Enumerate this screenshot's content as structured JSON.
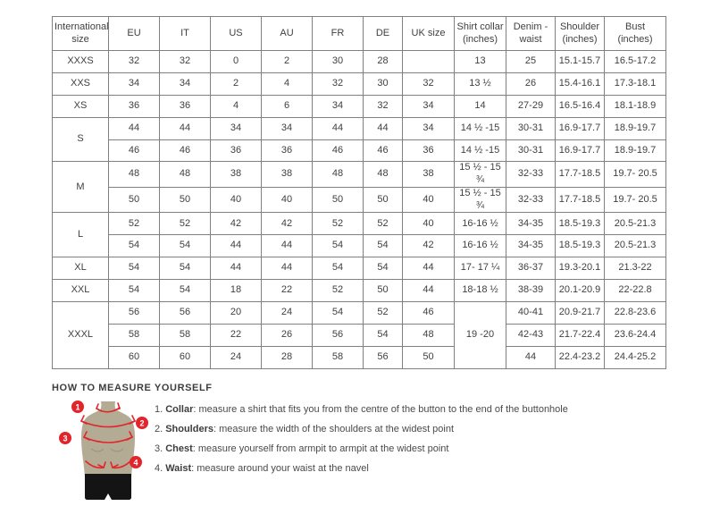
{
  "colors": {
    "accent_red": "#e0262c",
    "torso_tan": "#b3ab93",
    "table_border": "#808080",
    "text": "#404040"
  },
  "table": {
    "headers": [
      "International size",
      "EU",
      "IT",
      "US",
      "AU",
      "FR",
      "DE",
      "UK size",
      "Shirt collar (inches)",
      "Denim - waist",
      "Shoulder (inches)",
      "Bust (inches)"
    ],
    "rows": [
      [
        "XXXS",
        "32",
        "32",
        "0",
        "2",
        "30",
        "28",
        "",
        "13",
        "25",
        "15.1-15.7",
        "16.5-17.2"
      ],
      [
        "XXS",
        "34",
        "34",
        "2",
        "4",
        "32",
        "30",
        "32",
        "13 ½",
        "26",
        "15.4-16.1",
        "17.3-18.1"
      ],
      [
        "XS",
        "36",
        "36",
        "4",
        "6",
        "34",
        "32",
        "34",
        "14",
        "27-29",
        "16.5-16.4",
        "18.1-18.9"
      ],
      [
        {
          "v": "S",
          "rs": 2
        },
        "44",
        "44",
        "34",
        "34",
        "44",
        "44",
        "34",
        "14 ½ -15",
        "30-31",
        "16.9-17.7",
        "18.9-19.7"
      ],
      [
        "46",
        "46",
        "36",
        "36",
        "46",
        "46",
        "36",
        "14 ½ -15",
        "30-31",
        "16.9-17.7",
        "18.9-19.7"
      ],
      [
        {
          "v": "M",
          "rs": 2
        },
        "48",
        "48",
        "38",
        "38",
        "48",
        "48",
        "38",
        "15 ½ - 15 ¾",
        "32-33",
        "17.7-18.5",
        "19.7- 20.5"
      ],
      [
        "50",
        "50",
        "40",
        "40",
        "50",
        "50",
        "40",
        "15 ½ - 15 ¾",
        "32-33",
        "17.7-18.5",
        "19.7- 20.5"
      ],
      [
        {
          "v": "L",
          "rs": 2
        },
        "52",
        "52",
        "42",
        "42",
        "52",
        "52",
        "40",
        "16-16 ½",
        "34-35",
        "18.5-19.3",
        "20.5-21.3"
      ],
      [
        "54",
        "54",
        "44",
        "44",
        "54",
        "54",
        "42",
        "16-16 ½",
        "34-35",
        "18.5-19.3",
        "20.5-21.3"
      ],
      [
        "XL",
        "54",
        "54",
        "44",
        "44",
        "54",
        "54",
        "44",
        "17- 17 ¼",
        "36-37",
        "19.3-20.1",
        "21.3-22"
      ],
      [
        "XXL",
        "54",
        "54",
        "18",
        "22",
        "52",
        "50",
        "44",
        "18-18 ½",
        "38-39",
        "20.1-20.9",
        "22-22.8"
      ],
      [
        {
          "v": "XXXL",
          "rs": 3
        },
        "56",
        "56",
        "20",
        "24",
        "54",
        "52",
        "46",
        {
          "v": "19 -20",
          "rs": 3
        },
        "40-41",
        "20.9-21.7",
        "22.8-23.6"
      ],
      [
        "58",
        "58",
        "22",
        "26",
        "56",
        "54",
        "48",
        "42-43",
        "21.7-22.4",
        "23.6-24.4"
      ],
      [
        "60",
        "60",
        "24",
        "28",
        "58",
        "56",
        "50",
        "44",
        "22.4-23.2",
        "24.4-25.2"
      ]
    ]
  },
  "measure": {
    "title": "HOW TO MEASURE YOURSELF",
    "items": [
      {
        "num": "1.",
        "label": "Collar",
        "rest": ": measure a shirt that fits you from the centre of the button to the end of the buttonhole"
      },
      {
        "num": "2.",
        "label": "Shoulders",
        "rest": ": measure the width of the shoulders at the widest point"
      },
      {
        "num": "3.",
        "label": "Chest",
        "rest": ": measure yourself from armpit to armpit at the widest point"
      },
      {
        "num": "4.",
        "label": "Waist",
        "rest": ": measure around your waist at the navel"
      }
    ],
    "badges": [
      "1",
      "2",
      "3",
      "4"
    ]
  }
}
